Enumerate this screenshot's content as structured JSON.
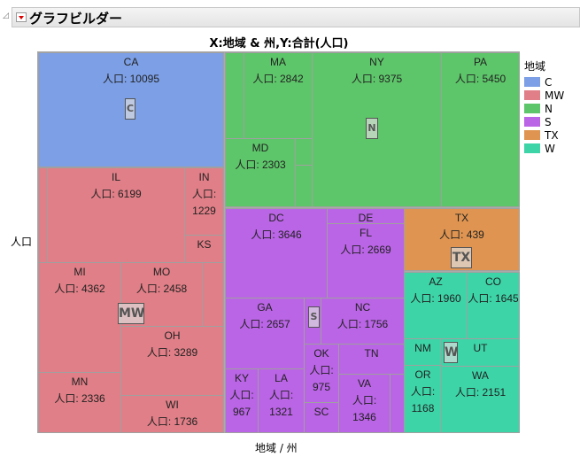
{
  "header": {
    "title": "グラフビルダー"
  },
  "chart_data": {
    "type": "treemap",
    "title": "X:地域 & 州,Y:合計(人口)",
    "xlabel": "地域 / 州",
    "ylabel": "人口",
    "value_prefix": "人口: ",
    "legend": {
      "title": "地域",
      "position": "right",
      "items": [
        {
          "name": "C",
          "color": "#7C9FE6"
        },
        {
          "name": "MW",
          "color": "#E07F87"
        },
        {
          "name": "N",
          "color": "#5EC66A"
        },
        {
          "name": "S",
          "color": "#BA64E6"
        },
        {
          "name": "TX",
          "color": "#DF9551"
        },
        {
          "name": "W",
          "color": "#3DD5A8"
        }
      ]
    },
    "cells": [
      {
        "state": "CA",
        "group": "C",
        "value": "10095"
      },
      {
        "state": "",
        "group": "MW",
        "value": ""
      },
      {
        "state": "IL",
        "group": "MW",
        "value": "6199"
      },
      {
        "state": "IN",
        "group": "MW",
        "value": "1229"
      },
      {
        "state": "KS",
        "group": "MW",
        "value": ""
      },
      {
        "state": "MI",
        "group": "MW",
        "value": "4362"
      },
      {
        "state": "MO",
        "group": "MW",
        "value": "2458"
      },
      {
        "state": "",
        "group": "MW",
        "value": ""
      },
      {
        "state": "OH",
        "group": "MW",
        "value": "3289"
      },
      {
        "state": "MN",
        "group": "MW",
        "value": "2336"
      },
      {
        "state": "WI",
        "group": "MW",
        "value": "1736"
      },
      {
        "state": "",
        "group": "N",
        "value": ""
      },
      {
        "state": "MA",
        "group": "N",
        "value": "2842"
      },
      {
        "state": "MD",
        "group": "N",
        "value": "2303"
      },
      {
        "state": "",
        "group": "N",
        "value": ""
      },
      {
        "state": "",
        "group": "N",
        "value": ""
      },
      {
        "state": "NY",
        "group": "N",
        "value": "9375"
      },
      {
        "state": "PA",
        "group": "N",
        "value": "5450"
      },
      {
        "state": "DC",
        "group": "S",
        "value": "3646"
      },
      {
        "state": "DE",
        "group": "S",
        "value": ""
      },
      {
        "state": "FL",
        "group": "S",
        "value": "2669"
      },
      {
        "state": "GA",
        "group": "S",
        "value": "2657"
      },
      {
        "state": "",
        "group": "S",
        "value": ""
      },
      {
        "state": "NC",
        "group": "S",
        "value": "1756"
      },
      {
        "state": "KY",
        "group": "S",
        "value": "967"
      },
      {
        "state": "LA",
        "group": "S",
        "value": "1321"
      },
      {
        "state": "OK",
        "group": "S",
        "value": "975"
      },
      {
        "state": "SC",
        "group": "S",
        "value": ""
      },
      {
        "state": "TN",
        "group": "S",
        "value": ""
      },
      {
        "state": "VA",
        "group": "S",
        "value": "1346"
      },
      {
        "state": "",
        "group": "S",
        "value": ""
      },
      {
        "state": "TX",
        "group": "TX",
        "value": "439"
      },
      {
        "state": "AZ",
        "group": "W",
        "value": "1960"
      },
      {
        "state": "CO",
        "group": "W",
        "value": "1645"
      },
      {
        "state": "NM",
        "group": "W",
        "value": ""
      },
      {
        "state": "UT",
        "group": "W",
        "value": ""
      },
      {
        "state": "OR",
        "group": "W",
        "value": "1168"
      },
      {
        "state": "WA",
        "group": "W",
        "value": "2151"
      }
    ]
  }
}
